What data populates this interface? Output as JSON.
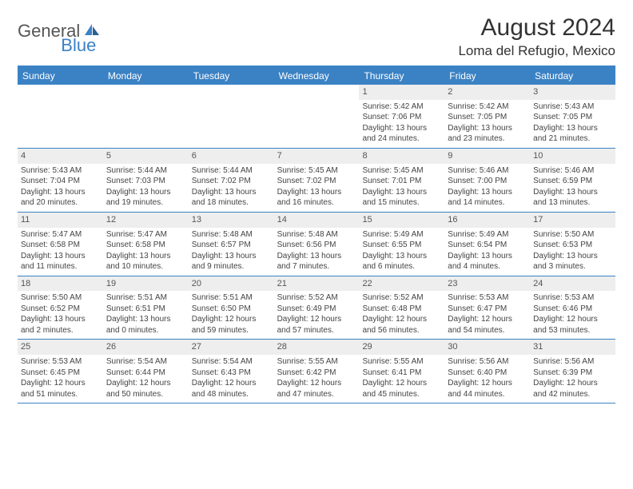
{
  "logo": {
    "general": "General",
    "blue": "Blue"
  },
  "title": "August 2024",
  "location": "Loma del Refugio, Mexico",
  "colors": {
    "brand_blue": "#3b82c4",
    "daynum_bg": "#eeeeee",
    "text": "#333333",
    "body_text": "#444444"
  },
  "weekdays": [
    "Sunday",
    "Monday",
    "Tuesday",
    "Wednesday",
    "Thursday",
    "Friday",
    "Saturday"
  ],
  "weeks": [
    [
      {
        "n": "",
        "sr": "",
        "ss": "",
        "dl": ""
      },
      {
        "n": "",
        "sr": "",
        "ss": "",
        "dl": ""
      },
      {
        "n": "",
        "sr": "",
        "ss": "",
        "dl": ""
      },
      {
        "n": "",
        "sr": "",
        "ss": "",
        "dl": ""
      },
      {
        "n": "1",
        "sr": "Sunrise: 5:42 AM",
        "ss": "Sunset: 7:06 PM",
        "dl": "Daylight: 13 hours and 24 minutes."
      },
      {
        "n": "2",
        "sr": "Sunrise: 5:42 AM",
        "ss": "Sunset: 7:05 PM",
        "dl": "Daylight: 13 hours and 23 minutes."
      },
      {
        "n": "3",
        "sr": "Sunrise: 5:43 AM",
        "ss": "Sunset: 7:05 PM",
        "dl": "Daylight: 13 hours and 21 minutes."
      }
    ],
    [
      {
        "n": "4",
        "sr": "Sunrise: 5:43 AM",
        "ss": "Sunset: 7:04 PM",
        "dl": "Daylight: 13 hours and 20 minutes."
      },
      {
        "n": "5",
        "sr": "Sunrise: 5:44 AM",
        "ss": "Sunset: 7:03 PM",
        "dl": "Daylight: 13 hours and 19 minutes."
      },
      {
        "n": "6",
        "sr": "Sunrise: 5:44 AM",
        "ss": "Sunset: 7:02 PM",
        "dl": "Daylight: 13 hours and 18 minutes."
      },
      {
        "n": "7",
        "sr": "Sunrise: 5:45 AM",
        "ss": "Sunset: 7:02 PM",
        "dl": "Daylight: 13 hours and 16 minutes."
      },
      {
        "n": "8",
        "sr": "Sunrise: 5:45 AM",
        "ss": "Sunset: 7:01 PM",
        "dl": "Daylight: 13 hours and 15 minutes."
      },
      {
        "n": "9",
        "sr": "Sunrise: 5:46 AM",
        "ss": "Sunset: 7:00 PM",
        "dl": "Daylight: 13 hours and 14 minutes."
      },
      {
        "n": "10",
        "sr": "Sunrise: 5:46 AM",
        "ss": "Sunset: 6:59 PM",
        "dl": "Daylight: 13 hours and 13 minutes."
      }
    ],
    [
      {
        "n": "11",
        "sr": "Sunrise: 5:47 AM",
        "ss": "Sunset: 6:58 PM",
        "dl": "Daylight: 13 hours and 11 minutes."
      },
      {
        "n": "12",
        "sr": "Sunrise: 5:47 AM",
        "ss": "Sunset: 6:58 PM",
        "dl": "Daylight: 13 hours and 10 minutes."
      },
      {
        "n": "13",
        "sr": "Sunrise: 5:48 AM",
        "ss": "Sunset: 6:57 PM",
        "dl": "Daylight: 13 hours and 9 minutes."
      },
      {
        "n": "14",
        "sr": "Sunrise: 5:48 AM",
        "ss": "Sunset: 6:56 PM",
        "dl": "Daylight: 13 hours and 7 minutes."
      },
      {
        "n": "15",
        "sr": "Sunrise: 5:49 AM",
        "ss": "Sunset: 6:55 PM",
        "dl": "Daylight: 13 hours and 6 minutes."
      },
      {
        "n": "16",
        "sr": "Sunrise: 5:49 AM",
        "ss": "Sunset: 6:54 PM",
        "dl": "Daylight: 13 hours and 4 minutes."
      },
      {
        "n": "17",
        "sr": "Sunrise: 5:50 AM",
        "ss": "Sunset: 6:53 PM",
        "dl": "Daylight: 13 hours and 3 minutes."
      }
    ],
    [
      {
        "n": "18",
        "sr": "Sunrise: 5:50 AM",
        "ss": "Sunset: 6:52 PM",
        "dl": "Daylight: 13 hours and 2 minutes."
      },
      {
        "n": "19",
        "sr": "Sunrise: 5:51 AM",
        "ss": "Sunset: 6:51 PM",
        "dl": "Daylight: 13 hours and 0 minutes."
      },
      {
        "n": "20",
        "sr": "Sunrise: 5:51 AM",
        "ss": "Sunset: 6:50 PM",
        "dl": "Daylight: 12 hours and 59 minutes."
      },
      {
        "n": "21",
        "sr": "Sunrise: 5:52 AM",
        "ss": "Sunset: 6:49 PM",
        "dl": "Daylight: 12 hours and 57 minutes."
      },
      {
        "n": "22",
        "sr": "Sunrise: 5:52 AM",
        "ss": "Sunset: 6:48 PM",
        "dl": "Daylight: 12 hours and 56 minutes."
      },
      {
        "n": "23",
        "sr": "Sunrise: 5:53 AM",
        "ss": "Sunset: 6:47 PM",
        "dl": "Daylight: 12 hours and 54 minutes."
      },
      {
        "n": "24",
        "sr": "Sunrise: 5:53 AM",
        "ss": "Sunset: 6:46 PM",
        "dl": "Daylight: 12 hours and 53 minutes."
      }
    ],
    [
      {
        "n": "25",
        "sr": "Sunrise: 5:53 AM",
        "ss": "Sunset: 6:45 PM",
        "dl": "Daylight: 12 hours and 51 minutes."
      },
      {
        "n": "26",
        "sr": "Sunrise: 5:54 AM",
        "ss": "Sunset: 6:44 PM",
        "dl": "Daylight: 12 hours and 50 minutes."
      },
      {
        "n": "27",
        "sr": "Sunrise: 5:54 AM",
        "ss": "Sunset: 6:43 PM",
        "dl": "Daylight: 12 hours and 48 minutes."
      },
      {
        "n": "28",
        "sr": "Sunrise: 5:55 AM",
        "ss": "Sunset: 6:42 PM",
        "dl": "Daylight: 12 hours and 47 minutes."
      },
      {
        "n": "29",
        "sr": "Sunrise: 5:55 AM",
        "ss": "Sunset: 6:41 PM",
        "dl": "Daylight: 12 hours and 45 minutes."
      },
      {
        "n": "30",
        "sr": "Sunrise: 5:56 AM",
        "ss": "Sunset: 6:40 PM",
        "dl": "Daylight: 12 hours and 44 minutes."
      },
      {
        "n": "31",
        "sr": "Sunrise: 5:56 AM",
        "ss": "Sunset: 6:39 PM",
        "dl": "Daylight: 12 hours and 42 minutes."
      }
    ]
  ]
}
